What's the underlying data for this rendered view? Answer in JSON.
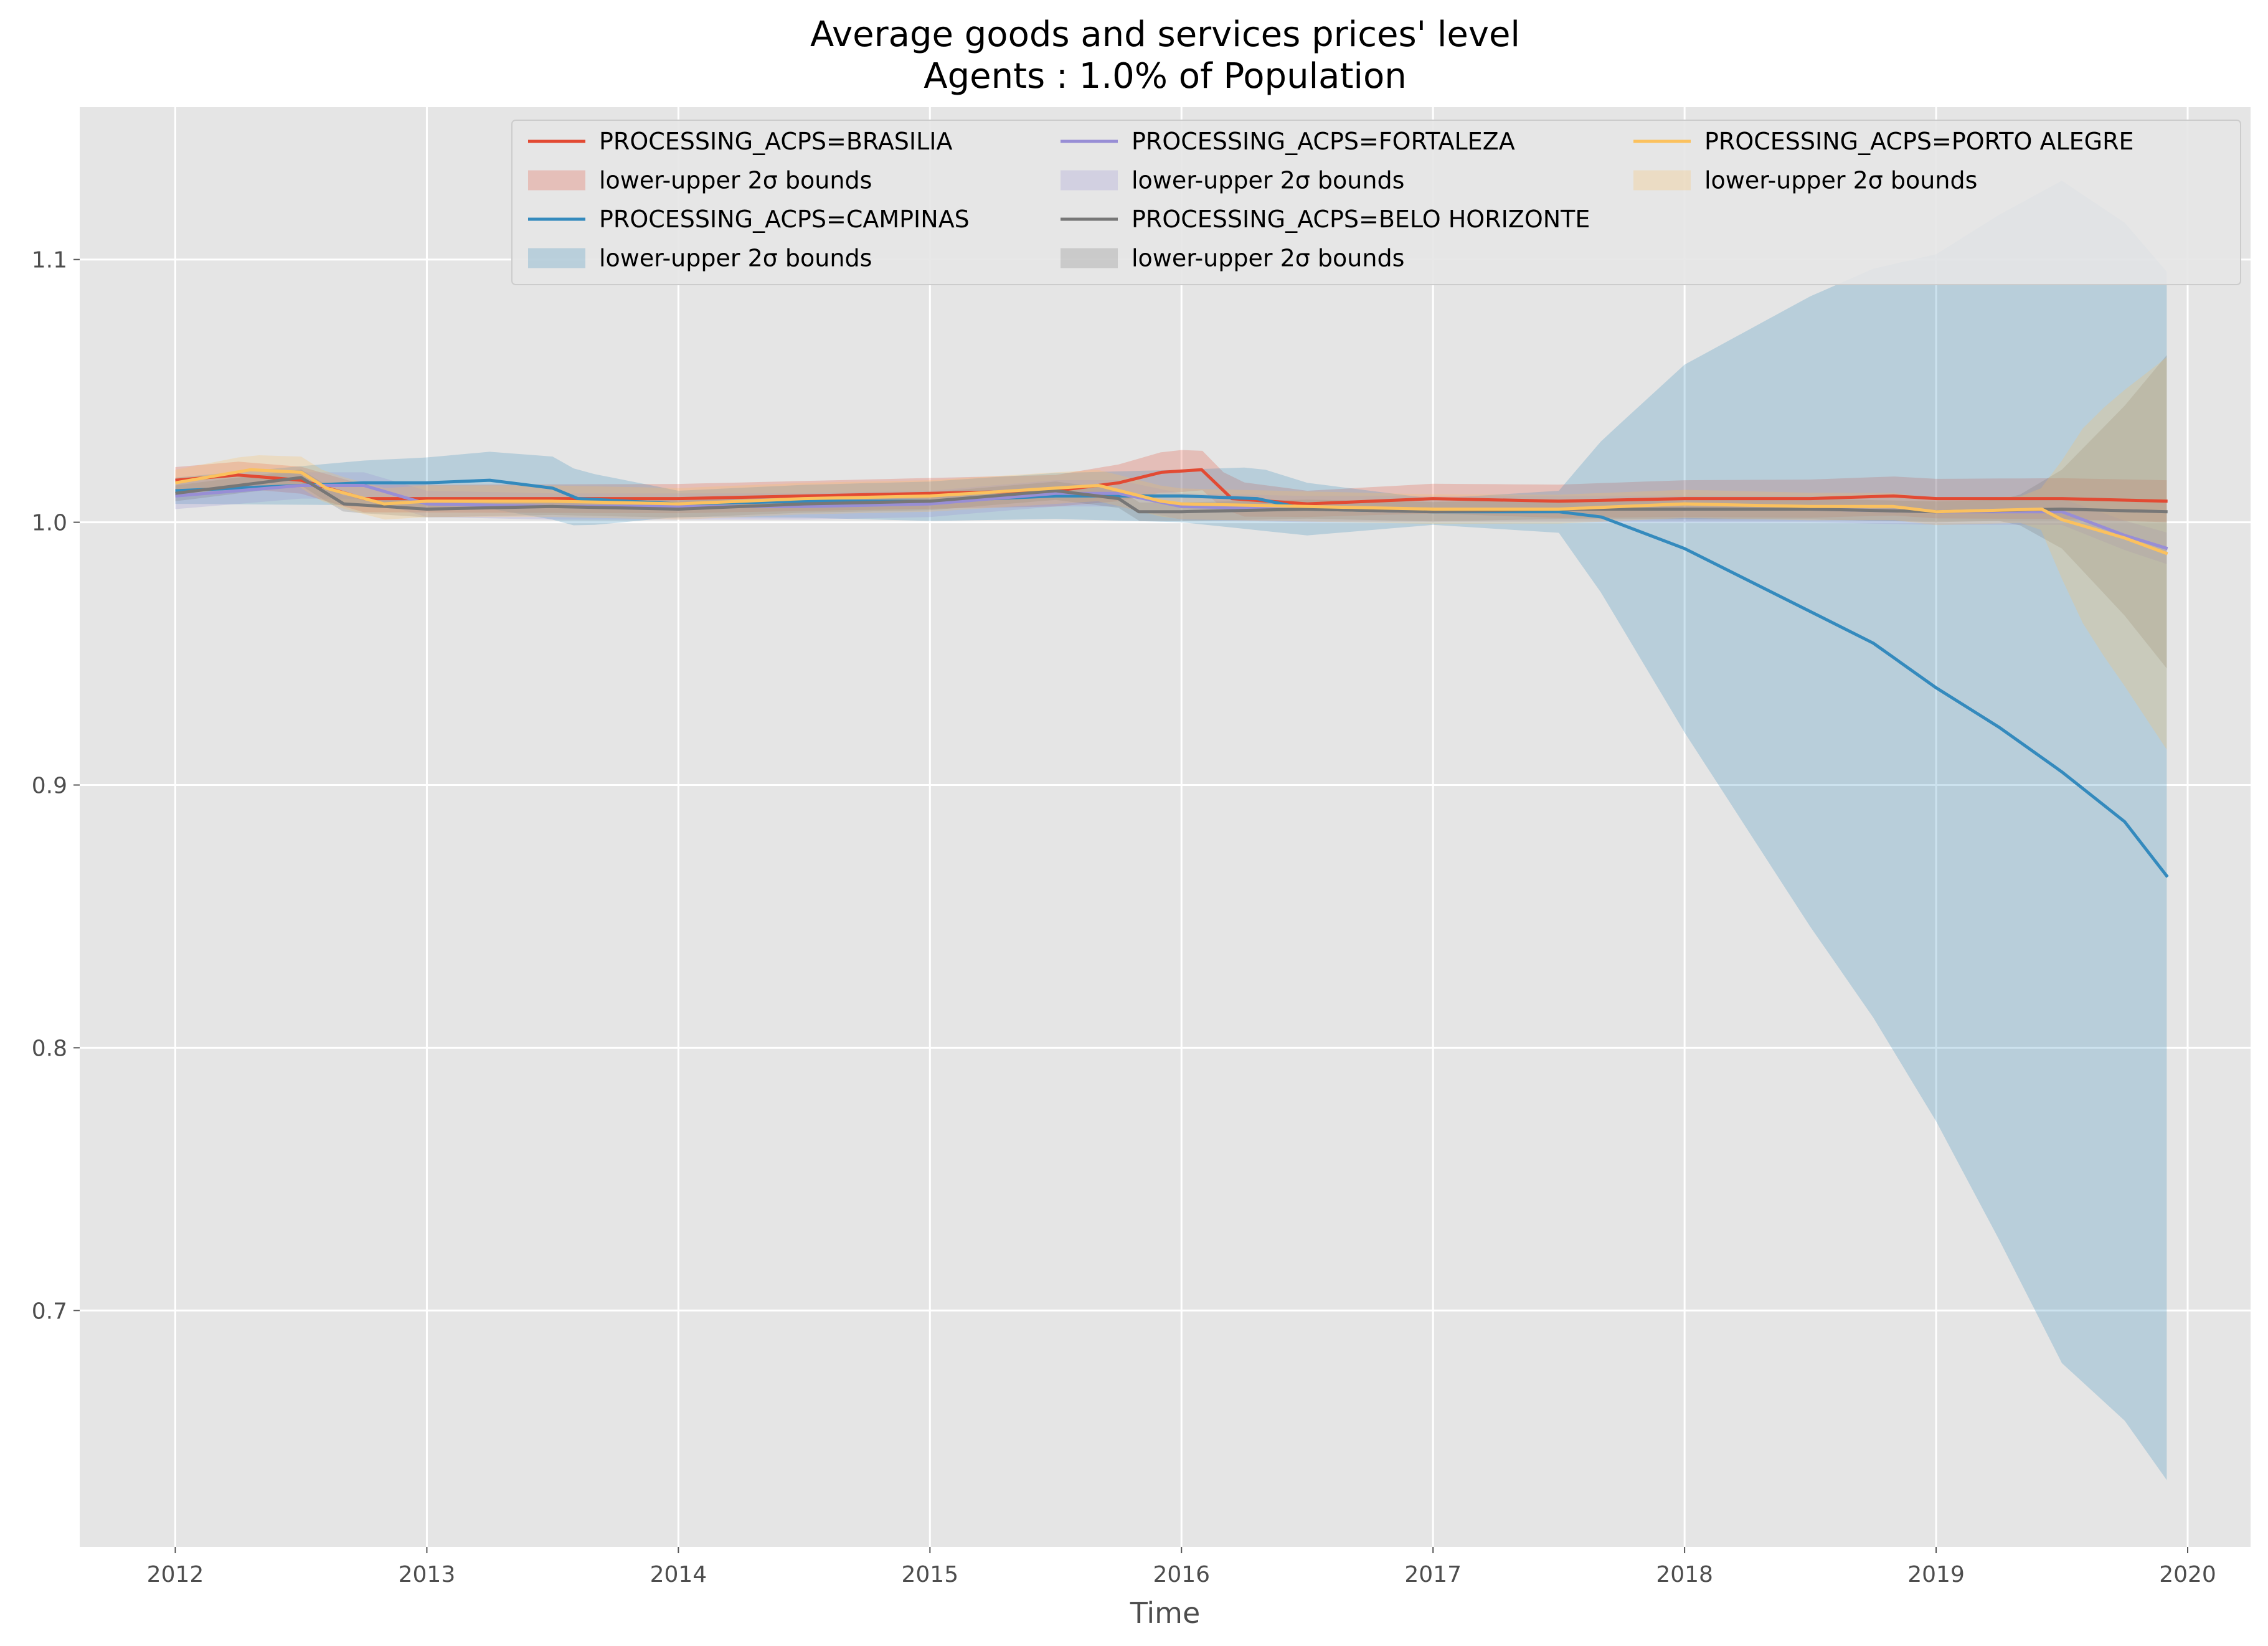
{
  "chart_data": {
    "type": "line",
    "title": "Average goods and services prices' level",
    "subtitle": "Agents : 1.0% of Population",
    "xlabel": "Time",
    "ylabel": "",
    "xlim": [
      2011.62,
      2020.25
    ],
    "ylim": [
      0.61,
      1.158
    ],
    "x_ticks": [
      2012,
      2013,
      2014,
      2015,
      2016,
      2017,
      2018,
      2019,
      2020
    ],
    "x_tick_labels": [
      "2012",
      "2013",
      "2014",
      "2015",
      "2016",
      "2017",
      "2018",
      "2019",
      "2020"
    ],
    "y_ticks": [
      0.7,
      0.8,
      0.9,
      1.0,
      1.1
    ],
    "y_tick_labels": [
      "0.7",
      "0.8",
      "0.9",
      "1.0",
      "1.1"
    ],
    "grid": true,
    "legend_position": "top-right",
    "legend_columns": 3,
    "background": "#e5e5e5",
    "series": [
      {
        "name": "PROCESSING_ACPS=BRASILIA",
        "band_label": "lower-upper 2σ bounds",
        "color": "#e24a33",
        "points": [
          [
            2012.0,
            1.016
          ],
          [
            2012.25,
            1.018
          ],
          [
            2012.5,
            1.016
          ],
          [
            2012.75,
            1.009
          ],
          [
            2013.0,
            1.009
          ],
          [
            2013.5,
            1.009
          ],
          [
            2014.0,
            1.009
          ],
          [
            2014.5,
            1.01
          ],
          [
            2015.0,
            1.011
          ],
          [
            2015.5,
            1.012
          ],
          [
            2015.75,
            1.015
          ],
          [
            2015.92,
            1.019
          ],
          [
            2016.08,
            1.02
          ],
          [
            2016.2,
            1.009
          ],
          [
            2016.5,
            1.007
          ],
          [
            2017.0,
            1.009
          ],
          [
            2017.5,
            1.008
          ],
          [
            2018.0,
            1.009
          ],
          [
            2018.5,
            1.009
          ],
          [
            2018.83,
            1.01
          ],
          [
            2019.0,
            1.009
          ],
          [
            2019.5,
            1.009
          ],
          [
            2019.92,
            1.008
          ]
        ],
        "band_halfwidth": [
          [
            2012.0,
            0.005
          ],
          [
            2015.5,
            0.006
          ],
          [
            2016.0,
            0.008
          ],
          [
            2016.5,
            0.005
          ],
          [
            2018.0,
            0.007
          ],
          [
            2019.92,
            0.008
          ]
        ]
      },
      {
        "name": "PROCESSING_ACPS=CAMPINAS",
        "band_label": "lower-upper 2σ bounds",
        "color": "#348abd",
        "points": [
          [
            2012.0,
            1.012
          ],
          [
            2012.5,
            1.014
          ],
          [
            2012.75,
            1.015
          ],
          [
            2013.0,
            1.015
          ],
          [
            2013.25,
            1.016
          ],
          [
            2013.5,
            1.013
          ],
          [
            2013.6,
            1.009
          ],
          [
            2014.0,
            1.007
          ],
          [
            2014.5,
            1.008
          ],
          [
            2015.0,
            1.008
          ],
          [
            2015.5,
            1.01
          ],
          [
            2015.75,
            1.01
          ],
          [
            2016.0,
            1.01
          ],
          [
            2016.3,
            1.009
          ],
          [
            2016.5,
            1.005
          ],
          [
            2017.0,
            1.004
          ],
          [
            2017.5,
            1.004
          ],
          [
            2017.67,
            1.002
          ],
          [
            2018.0,
            0.99
          ],
          [
            2018.25,
            0.978
          ],
          [
            2018.5,
            0.966
          ],
          [
            2018.75,
            0.954
          ],
          [
            2019.0,
            0.937
          ],
          [
            2019.25,
            0.922
          ],
          [
            2019.5,
            0.905
          ],
          [
            2019.75,
            0.886
          ],
          [
            2019.92,
            0.865
          ]
        ],
        "band_halfwidth": [
          [
            2012.0,
            0.005
          ],
          [
            2013.5,
            0.012
          ],
          [
            2014.0,
            0.005
          ],
          [
            2016.0,
            0.01
          ],
          [
            2016.3,
            0.012
          ],
          [
            2017.0,
            0.005
          ],
          [
            2017.5,
            0.008
          ],
          [
            2018.0,
            0.07
          ],
          [
            2018.5,
            0.12
          ],
          [
            2019.0,
            0.165
          ],
          [
            2019.5,
            0.225
          ],
          [
            2019.92,
            0.23
          ]
        ]
      },
      {
        "name": "PROCESSING_ACPS=FORTALEZA",
        "band_label": "lower-upper 2σ bounds",
        "color": "#988ed5",
        "points": [
          [
            2012.0,
            1.01
          ],
          [
            2012.5,
            1.014
          ],
          [
            2012.75,
            1.014
          ],
          [
            2013.0,
            1.007
          ],
          [
            2013.5,
            1.006
          ],
          [
            2014.0,
            1.006
          ],
          [
            2014.5,
            1.006
          ],
          [
            2015.0,
            1.007
          ],
          [
            2015.5,
            1.011
          ],
          [
            2015.75,
            1.011
          ],
          [
            2016.0,
            1.006
          ],
          [
            2016.5,
            1.005
          ],
          [
            2017.0,
            1.005
          ],
          [
            2017.5,
            1.005
          ],
          [
            2018.0,
            1.005
          ],
          [
            2018.5,
            1.005
          ],
          [
            2019.0,
            1.004
          ],
          [
            2019.5,
            1.004
          ],
          [
            2019.75,
            0.995
          ],
          [
            2019.92,
            0.99
          ]
        ],
        "band_halfwidth": [
          [
            2012.0,
            0.005
          ],
          [
            2019.5,
            0.005
          ],
          [
            2019.92,
            0.006
          ]
        ]
      },
      {
        "name": "PROCESSING_ACPS=BELO HORIZONTE",
        "band_label": "lower-upper 2σ bounds",
        "color": "#777777",
        "points": [
          [
            2012.0,
            1.011
          ],
          [
            2012.5,
            1.017
          ],
          [
            2012.67,
            1.007
          ],
          [
            2013.0,
            1.005
          ],
          [
            2013.5,
            1.006
          ],
          [
            2014.0,
            1.005
          ],
          [
            2014.5,
            1.007
          ],
          [
            2015.0,
            1.008
          ],
          [
            2015.5,
            1.012
          ],
          [
            2015.75,
            1.009
          ],
          [
            2015.83,
            1.004
          ],
          [
            2016.0,
            1.004
          ],
          [
            2016.5,
            1.005
          ],
          [
            2017.0,
            1.004
          ],
          [
            2017.5,
            1.005
          ],
          [
            2018.0,
            1.005
          ],
          [
            2018.5,
            1.005
          ],
          [
            2019.0,
            1.004
          ],
          [
            2019.5,
            1.005
          ],
          [
            2019.92,
            1.004
          ]
        ],
        "band_halfwidth": [
          [
            2012.0,
            0.003
          ],
          [
            2019.3,
            0.004
          ],
          [
            2019.5,
            0.015
          ],
          [
            2019.75,
            0.04
          ],
          [
            2019.92,
            0.06
          ]
        ]
      },
      {
        "name": "PROCESSING_ACPS=PORTO ALEGRE",
        "band_label": "lower-upper 2σ bounds",
        "color": "#fbc15e",
        "points": [
          [
            2012.0,
            1.015
          ],
          [
            2012.3,
            1.02
          ],
          [
            2012.5,
            1.019
          ],
          [
            2012.6,
            1.013
          ],
          [
            2012.83,
            1.007
          ],
          [
            2013.0,
            1.008
          ],
          [
            2013.5,
            1.008
          ],
          [
            2014.0,
            1.007
          ],
          [
            2014.5,
            1.009
          ],
          [
            2015.0,
            1.01
          ],
          [
            2015.5,
            1.013
          ],
          [
            2015.67,
            1.014
          ],
          [
            2015.92,
            1.008
          ],
          [
            2016.0,
            1.007
          ],
          [
            2016.5,
            1.006
          ],
          [
            2017.0,
            1.005
          ],
          [
            2017.5,
            1.005
          ],
          [
            2018.0,
            1.007
          ],
          [
            2018.5,
            1.006
          ],
          [
            2018.83,
            1.006
          ],
          [
            2019.0,
            1.004
          ],
          [
            2019.42,
            1.005
          ],
          [
            2019.5,
            1.001
          ],
          [
            2019.75,
            0.994
          ],
          [
            2019.92,
            0.988
          ]
        ],
        "band_halfwidth": [
          [
            2012.0,
            0.005
          ],
          [
            2012.5,
            0.006
          ],
          [
            2015.5,
            0.006
          ],
          [
            2019.4,
            0.005
          ],
          [
            2019.6,
            0.04
          ],
          [
            2019.92,
            0.075
          ]
        ]
      }
    ]
  }
}
